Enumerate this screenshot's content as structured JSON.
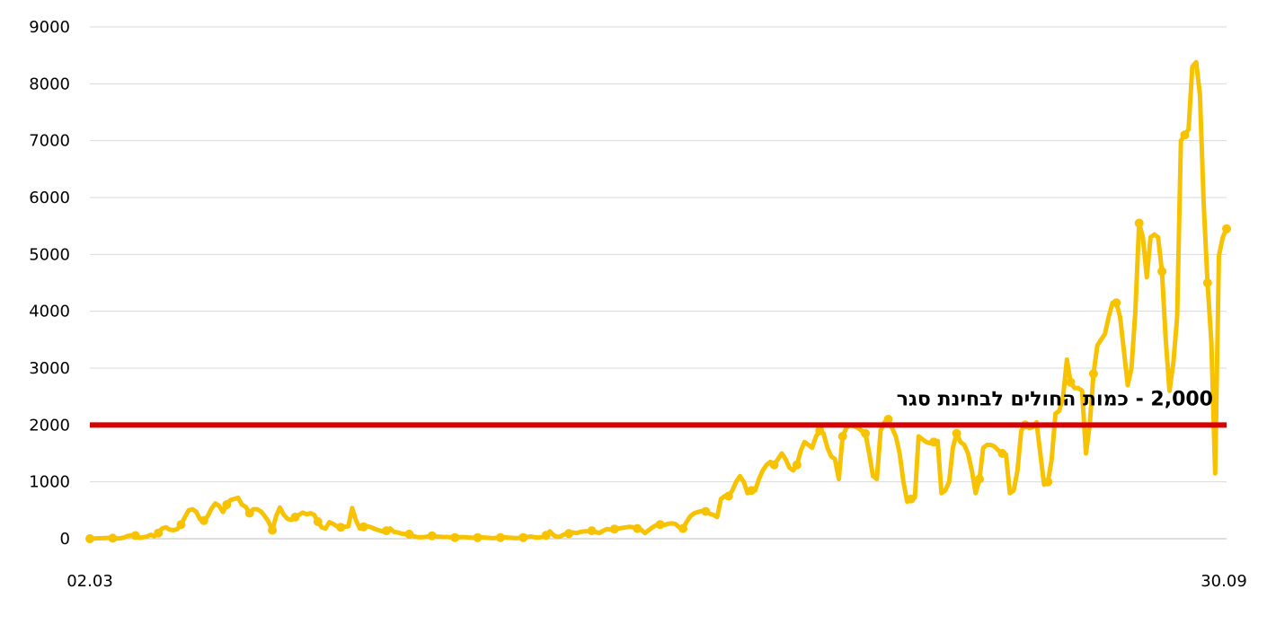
{
  "chart_data": {
    "type": "line",
    "xlabel": "",
    "ylabel": "",
    "x_start_label": "02.03",
    "x_end_label": "30.09",
    "ylim": [
      0,
      9000
    ],
    "yticks": [
      0,
      1000,
      2000,
      3000,
      4000,
      5000,
      6000,
      7000,
      8000,
      9000
    ],
    "grid": true,
    "threshold": {
      "value": 2000,
      "label": "2,000 - כמות החולים לבחינת סגר",
      "color": "#d50000"
    },
    "series": [
      {
        "color": "#f7c200",
        "values": [
          0,
          5,
          8,
          10,
          12,
          15,
          10,
          5,
          8,
          20,
          50,
          60,
          55,
          15,
          25,
          40,
          70,
          45,
          100,
          180,
          200,
          160,
          150,
          170,
          250,
          380,
          500,
          520,
          470,
          340,
          320,
          400,
          530,
          620,
          580,
          470,
          600,
          680,
          700,
          720,
          600,
          560,
          450,
          520,
          520,
          480,
          400,
          300,
          150,
          400,
          550,
          420,
          350,
          330,
          380,
          420,
          460,
          430,
          450,
          420,
          300,
          200,
          180,
          290,
          260,
          220,
          200,
          210,
          220,
          540,
          320,
          180,
          210,
          220,
          200,
          170,
          150,
          130,
          140,
          180,
          120,
          110,
          90,
          80,
          80,
          50,
          30,
          25,
          30,
          40,
          50,
          40,
          35,
          30,
          30,
          25,
          20,
          25,
          30,
          25,
          20,
          15,
          20,
          25,
          20,
          15,
          10,
          15,
          20,
          25,
          20,
          15,
          10,
          15,
          20,
          30,
          40,
          25,
          20,
          30,
          60,
          130,
          60,
          30,
          50,
          80,
          90,
          110,
          100,
          120,
          130,
          130,
          140,
          120,
          100,
          140,
          170,
          160,
          170,
          180,
          190,
          200,
          210,
          200,
          180,
          160,
          100,
          150,
          200,
          240,
          250,
          240,
          260,
          270,
          260,
          200,
          180,
          300,
          400,
          450,
          470,
          490,
          480,
          440,
          420,
          380,
          700,
          750,
          750,
          850,
          1000,
          1100,
          1000,
          800,
          850,
          850,
          1050,
          1200,
          1300,
          1350,
          1300,
          1400,
          1500,
          1400,
          1250,
          1200,
          1300,
          1550,
          1700,
          1650,
          1600,
          1800,
          1900,
          1850,
          1600,
          1450,
          1400,
          1050,
          1800,
          1950,
          2000,
          1980,
          1950,
          1900,
          1850,
          1500,
          1100,
          1050,
          1900,
          2050,
          2100,
          1950,
          1800,
          1500,
          1000,
          650,
          700,
          720,
          1800,
          1750,
          1700,
          1680,
          1700,
          1720,
          800,
          850,
          1000,
          1600,
          1850,
          1700,
          1650,
          1500,
          1200,
          800,
          1050,
          1600,
          1650,
          1650,
          1620,
          1550,
          1500,
          1480,
          800,
          850,
          1200,
          1900,
          2000,
          1950,
          1960,
          2050,
          1500,
          950,
          1000,
          1400,
          2200,
          2250,
          2500,
          3150,
          2750,
          2650,
          2650,
          2600,
          1500,
          2000,
          2900,
          3400,
          3500,
          3600,
          3900,
          4150,
          4150,
          3900,
          3300,
          2700,
          3000,
          4000,
          5550,
          5300,
          4600,
          5300,
          5350,
          5300,
          4700,
          3500,
          2600,
          3100,
          3900,
          7000,
          7100,
          7200,
          8300,
          8380,
          7800,
          5870,
          4500,
          3450,
          1150,
          4980,
          5300,
          5450
        ]
      }
    ]
  }
}
